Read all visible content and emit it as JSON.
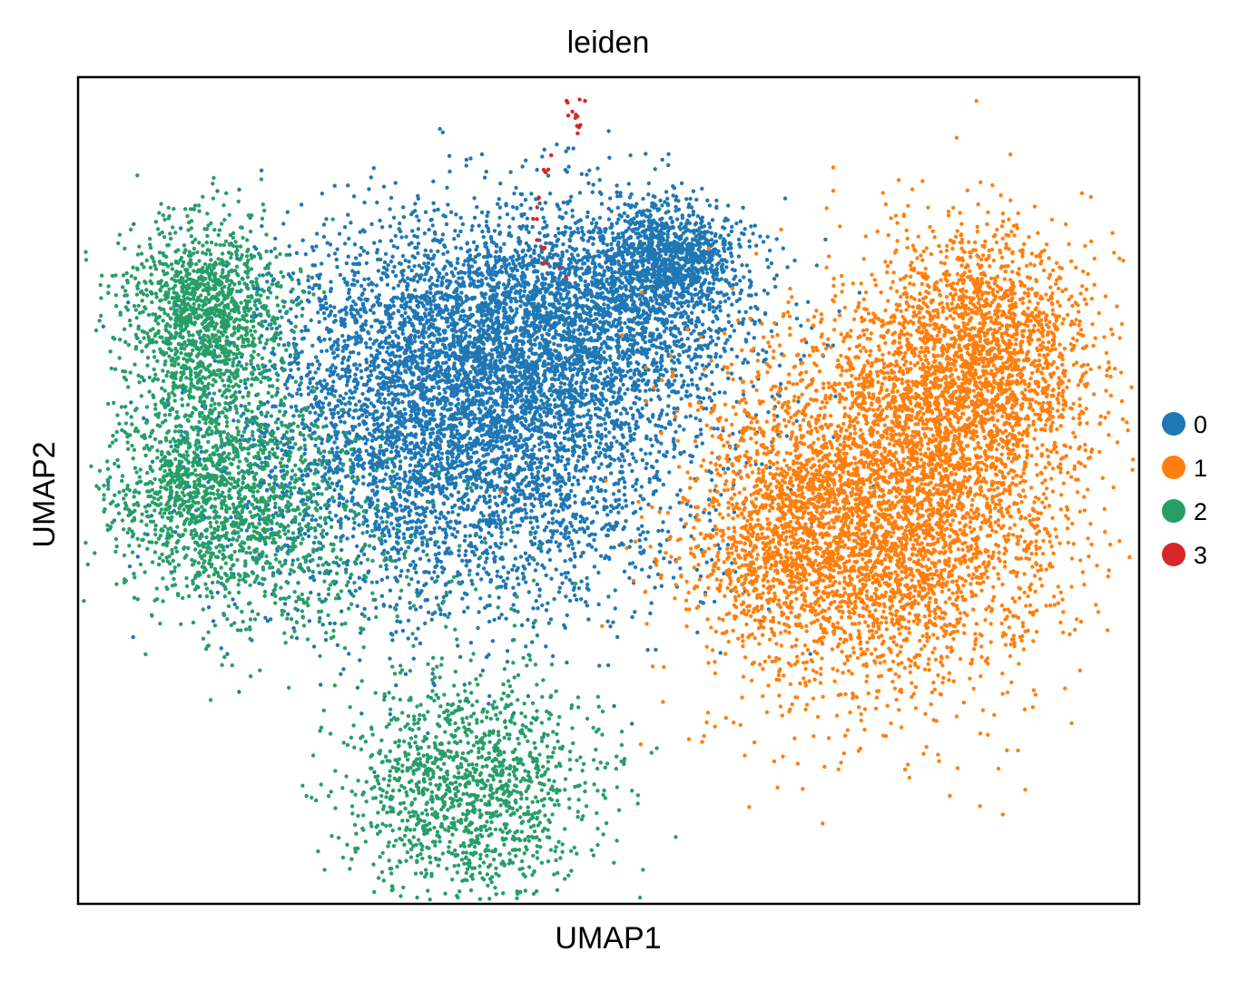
{
  "chart_data": {
    "type": "scatter",
    "title": "leiden",
    "xlabel": "UMAP1",
    "ylabel": "UMAP2",
    "xlim": [
      0,
      100
    ],
    "ylim": [
      0,
      100
    ],
    "grid": false,
    "ticks": false,
    "legend": "right",
    "series": [
      {
        "name": "0",
        "color": "#1f77b4",
        "points": 9000,
        "regions": [
          {
            "cx": 36,
            "cy": 57,
            "sx": 11,
            "sy": 11,
            "w": 0.55
          },
          {
            "cx": 41,
            "cy": 70,
            "sx": 9,
            "sy": 7,
            "w": 0.25
          },
          {
            "cx": 52,
            "cy": 74,
            "sx": 6,
            "sy": 6,
            "w": 0.12
          },
          {
            "cx": 56,
            "cy": 78,
            "sx": 3,
            "sy": 3,
            "w": 0.08
          }
        ]
      },
      {
        "name": "1",
        "color": "#ff7f0e",
        "points": 7000,
        "regions": [
          {
            "cx": 76,
            "cy": 48,
            "sx": 8,
            "sy": 11,
            "w": 0.6
          },
          {
            "cx": 85,
            "cy": 66,
            "sx": 5.5,
            "sy": 8,
            "w": 0.3
          },
          {
            "cx": 66,
            "cy": 44,
            "sx": 4,
            "sy": 7,
            "w": 0.1
          }
        ]
      },
      {
        "name": "2",
        "color": "#279e68",
        "points": 4500,
        "regions": [
          {
            "cx": 12,
            "cy": 71,
            "sx": 4,
            "sy": 6,
            "w": 0.3
          },
          {
            "cx": 13,
            "cy": 51,
            "sx": 5,
            "sy": 6,
            "w": 0.3
          },
          {
            "cx": 37,
            "cy": 14,
            "sx": 6,
            "sy": 7,
            "w": 0.3
          },
          {
            "cx": 20,
            "cy": 42,
            "sx": 9,
            "sy": 6,
            "w": 0.1
          }
        ]
      },
      {
        "name": "3",
        "color": "#d62728",
        "points": 30,
        "path": [
          [
            46,
            76
          ],
          [
            44,
            78
          ],
          [
            43,
            83
          ],
          [
            44,
            89
          ],
          [
            47,
            94
          ],
          [
            46,
            97
          ],
          [
            47.5,
            97
          ]
        ]
      }
    ]
  }
}
